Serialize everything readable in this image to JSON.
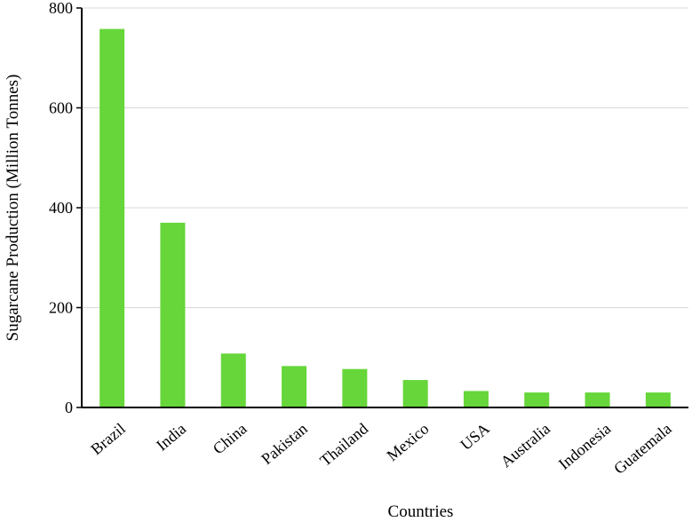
{
  "chart_data": {
    "type": "bar",
    "title": "",
    "xlabel": "Countries",
    "ylabel": "Sugarcane Production (Million Tonnes)",
    "categories": [
      "Brazil",
      "India",
      "China",
      "Pakistan",
      "Thailand",
      "Mexico",
      "USA",
      "Australia",
      "Indonesia",
      "Guatemala"
    ],
    "values": [
      758,
      370,
      108,
      83,
      77,
      55,
      33,
      30,
      30,
      30
    ],
    "ylim": [
      0,
      800
    ],
    "yticks": [
      0,
      200,
      400,
      600,
      800
    ],
    "grid": true,
    "bar_color": "#66d63a",
    "legend": "none"
  }
}
